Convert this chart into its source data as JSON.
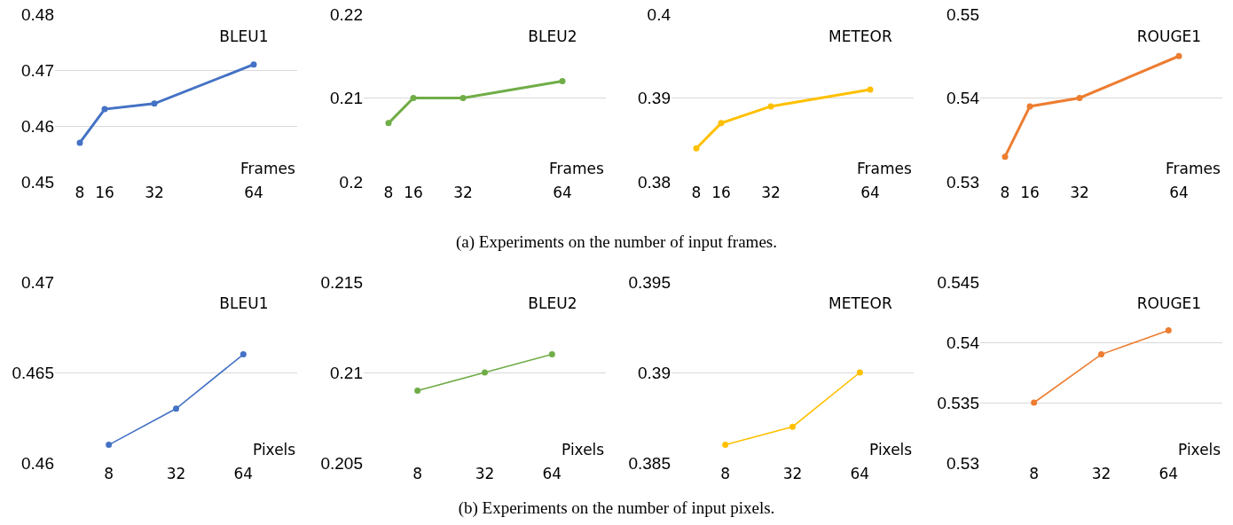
{
  "chart_data": [
    {
      "type": "line",
      "title": "BLEU1",
      "xlabel": "Frames",
      "x": [
        8,
        16,
        32,
        64
      ],
      "xlim": [
        0,
        78
      ],
      "xticks": [
        8,
        16,
        32,
        64
      ],
      "ylim": [
        0.45,
        0.48
      ],
      "yticks": [
        0.45,
        0.46,
        0.47,
        0.48
      ],
      "grid": "y",
      "marker": "circle",
      "annotations": [
        "(a) Experiments on the number of input frames."
      ],
      "series": [
        {
          "color": "#4472c4",
          "values": [
            0.457,
            0.463,
            0.464,
            0.471
          ]
        }
      ]
    },
    {
      "type": "line",
      "title": "BLEU2",
      "xlabel": "Frames",
      "x": [
        8,
        16,
        32,
        64
      ],
      "xlim": [
        0,
        78
      ],
      "xticks": [
        8,
        16,
        32,
        64
      ],
      "ylim": [
        0.2,
        0.22
      ],
      "yticks": [
        0.2,
        0.21,
        0.22
      ],
      "grid": "y",
      "marker": "circle",
      "series": [
        {
          "color": "#70ad47",
          "values": [
            0.207,
            0.21,
            0.21,
            0.212
          ]
        }
      ]
    },
    {
      "type": "line",
      "title": "METEOR",
      "xlabel": "Frames",
      "x": [
        8,
        16,
        32,
        64
      ],
      "xlim": [
        0,
        78
      ],
      "xticks": [
        8,
        16,
        32,
        64
      ],
      "ylim": [
        0.38,
        0.4
      ],
      "yticks": [
        0.38,
        0.39,
        0.4
      ],
      "grid": "y",
      "marker": "circle",
      "series": [
        {
          "color": "#ffc000",
          "values": [
            0.384,
            0.387,
            0.389,
            0.391
          ]
        }
      ]
    },
    {
      "type": "line",
      "title": "ROUGE1",
      "xlabel": "Frames",
      "x": [
        8,
        16,
        32,
        64
      ],
      "xlim": [
        0,
        78
      ],
      "xticks": [
        8,
        16,
        32,
        64
      ],
      "ylim": [
        0.53,
        0.55
      ],
      "yticks": [
        0.53,
        0.54,
        0.55
      ],
      "grid": "y",
      "marker": "circle",
      "series": [
        {
          "color": "#ed7d31",
          "values": [
            0.533,
            0.539,
            0.54,
            0.545
          ]
        }
      ]
    },
    {
      "type": "line",
      "title": "BLEU1",
      "xlabel": "Pixels",
      "categories": [
        "8",
        "32",
        "64"
      ],
      "ylim": [
        0.46,
        0.47
      ],
      "yticks": [
        0.46,
        0.465,
        0.47
      ],
      "grid": "y",
      "marker": "circle",
      "annotations": [
        "(b) Experiments on the number of input pixels."
      ],
      "series": [
        {
          "color": "#4472c4",
          "values": [
            0.461,
            0.463,
            0.466
          ]
        }
      ]
    },
    {
      "type": "line",
      "title": "BLEU2",
      "xlabel": "Pixels",
      "categories": [
        "8",
        "32",
        "64"
      ],
      "ylim": [
        0.205,
        0.215
      ],
      "yticks": [
        0.205,
        0.21,
        0.215
      ],
      "grid": "y",
      "marker": "circle",
      "series": [
        {
          "color": "#70ad47",
          "values": [
            0.209,
            0.21,
            0.211
          ]
        }
      ]
    },
    {
      "type": "line",
      "title": "METEOR",
      "xlabel": "Pixels",
      "categories": [
        "8",
        "32",
        "64"
      ],
      "ylim": [
        0.385,
        0.395
      ],
      "yticks": [
        0.385,
        0.39,
        0.395
      ],
      "grid": "y",
      "marker": "circle",
      "series": [
        {
          "color": "#ffc000",
          "values": [
            0.386,
            0.387,
            0.39
          ]
        }
      ]
    },
    {
      "type": "line",
      "title": "ROUGE1",
      "xlabel": "Pixels",
      "categories": [
        "8",
        "32",
        "64"
      ],
      "ylim": [
        0.53,
        0.545
      ],
      "yticks": [
        0.53,
        0.535,
        0.54,
        0.545
      ],
      "grid": "y",
      "marker": "circle",
      "series": [
        {
          "color": "#ed7d31",
          "values": [
            0.535,
            0.539,
            0.541
          ]
        }
      ]
    }
  ]
}
